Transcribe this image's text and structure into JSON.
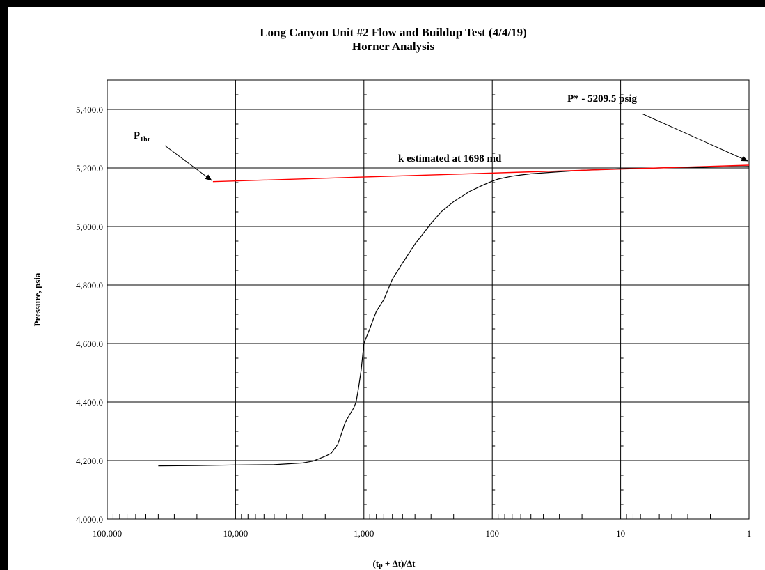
{
  "chart_data": {
    "type": "line",
    "title": "Long Canyon Unit #2 Flow and Buildup Test (4/4/19)",
    "subtitle": "Horner Analysis",
    "xlabel": "(tP + Δt)/Δt",
    "xlabel_parts": {
      "open": "(t",
      "sub": "P",
      "rest": " + Δt)/Δt"
    },
    "ylabel": "Pressure, psia",
    "x_scale": "log",
    "x_reversed": true,
    "xlim": [
      100000,
      1
    ],
    "ylim": [
      4000,
      5500
    ],
    "x_ticks": [
      100000,
      10000,
      1000,
      100,
      10,
      1
    ],
    "x_tick_labels": [
      "100,000",
      "10,000",
      "1,000",
      "100",
      "10",
      "1"
    ],
    "y_ticks": [
      4000,
      4200,
      4400,
      4600,
      4800,
      5000,
      5200,
      5400
    ],
    "y_tick_labels": [
      "4,000.0",
      "4,200.0",
      "4,400.0",
      "4,600.0",
      "4,800.0",
      "5,000.0",
      "5,200.0",
      "5,400.0"
    ],
    "grid": true,
    "colors": {
      "data": "#000000",
      "fit": "#ff0000",
      "grid": "#000000"
    },
    "series": [
      {
        "style": "data",
        "x": [
          40000,
          20000,
          10000,
          5000,
          3000,
          2500,
          2000,
          1800,
          1600,
          1500,
          1400,
          1300,
          1200,
          1150,
          1100,
          1050,
          1000,
          950,
          900,
          850,
          800,
          700,
          600,
          500,
          400,
          300,
          250,
          200,
          150,
          120,
          100,
          90,
          80,
          70,
          60,
          50,
          40,
          30,
          20,
          10,
          5,
          2,
          1
        ],
        "y": [
          4182,
          4183,
          4185,
          4186,
          4192,
          4198,
          4215,
          4225,
          4255,
          4290,
          4330,
          4355,
          4380,
          4400,
          4450,
          4510,
          4600,
          4625,
          4650,
          4680,
          4710,
          4750,
          4820,
          4875,
          4940,
          5010,
          5050,
          5085,
          5120,
          5140,
          5155,
          5162,
          5167,
          5172,
          5176,
          5180,
          5183,
          5187,
          5192,
          5197,
          5200,
          5203,
          5205
        ]
      },
      {
        "style": "fit",
        "x": [
          15000,
          1
        ],
        "y": [
          5153,
          5209.5
        ]
      }
    ],
    "annotations": [
      {
        "text_main": "P",
        "text_sub": "1hr",
        "arrow_to": {
          "x": 15000,
          "y": 5155
        }
      },
      {
        "text": "k estimated at 1698 md"
      },
      {
        "text": "P* - 5209.5 psig",
        "arrow_to": {
          "x": 1,
          "y": 5209.5
        }
      }
    ]
  }
}
